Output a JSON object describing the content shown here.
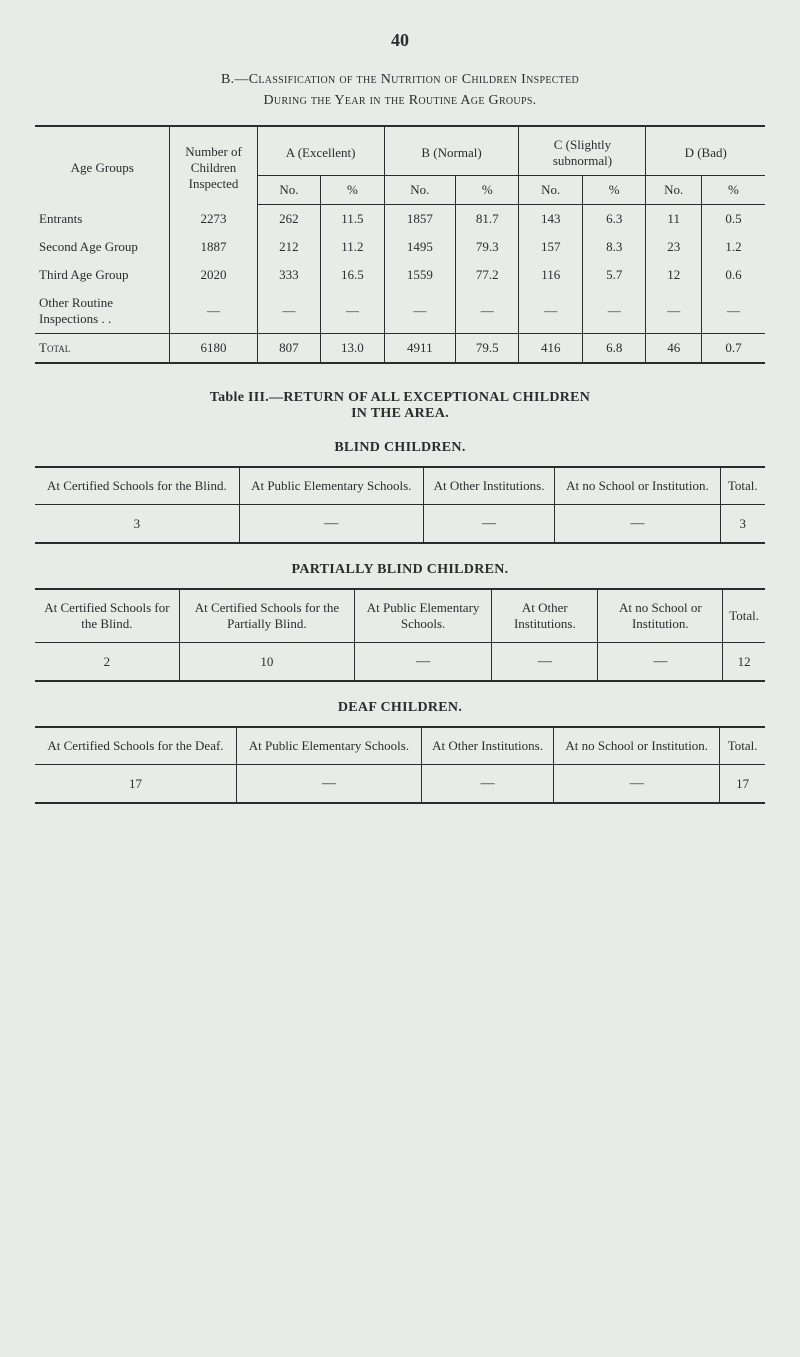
{
  "page_number": "40",
  "section_b_title_line1": "B.—Classification of the Nutrition of Children Inspected",
  "section_b_title_line2": "During the Year in the Routine Age Groups.",
  "nutrition_table": {
    "col_age": "Age Groups",
    "col_num": "Number of Children Inspected",
    "col_a": "A (Excellent)",
    "col_b": "B (Normal)",
    "col_c": "C (Slightly subnormal)",
    "col_d": "D (Bad)",
    "sub_no": "No.",
    "sub_pct": "%",
    "rows": [
      {
        "label": "Entrants",
        "num": "2273",
        "a_no": "262",
        "a_pct": "11.5",
        "b_no": "1857",
        "b_pct": "81.7",
        "c_no": "143",
        "c_pct": "6.3",
        "d_no": "11",
        "d_pct": "0.5"
      },
      {
        "label": "Second Age Group",
        "num": "1887",
        "a_no": "212",
        "a_pct": "11.2",
        "b_no": "1495",
        "b_pct": "79.3",
        "c_no": "157",
        "c_pct": "8.3",
        "d_no": "23",
        "d_pct": "1.2"
      },
      {
        "label": "Third Age Group",
        "num": "2020",
        "a_no": "333",
        "a_pct": "16.5",
        "b_no": "1559",
        "b_pct": "77.2",
        "c_no": "116",
        "c_pct": "5.7",
        "d_no": "12",
        "d_pct": "0.6"
      },
      {
        "label": "Other Routine Inspections . .",
        "num": "—",
        "a_no": "—",
        "a_pct": "—",
        "b_no": "—",
        "b_pct": "—",
        "c_no": "—",
        "c_pct": "—",
        "d_no": "—",
        "d_pct": "—"
      }
    ],
    "total_label": "Total",
    "total": {
      "num": "6180",
      "a_no": "807",
      "a_pct": "13.0",
      "b_no": "4911",
      "b_pct": "79.5",
      "c_no": "416",
      "c_pct": "6.8",
      "d_no": "46",
      "d_pct": "0.7"
    }
  },
  "table3_title_line1": "Table III.—RETURN OF ALL EXCEPTIONAL CHILDREN",
  "table3_title_line2": "IN THE AREA.",
  "blind": {
    "heading": "BLIND CHILDREN.",
    "cols": [
      "At Certified Schools for the Blind.",
      "At Public Elementary Schools.",
      "At Other Institutions.",
      "At no School or Institution.",
      "Total."
    ],
    "row": [
      "3",
      "—",
      "—",
      "—",
      "3"
    ]
  },
  "partially_blind": {
    "heading": "PARTIALLY BLIND CHILDREN.",
    "cols": [
      "At Certified Schools for the Blind.",
      "At Certified Schools for the Partially Blind.",
      "At Public Elementary Schools.",
      "At Other Institutions.",
      "At no School or Institution.",
      "Total."
    ],
    "row": [
      "2",
      "10",
      "—",
      "—",
      "—",
      "12"
    ]
  },
  "deaf": {
    "heading": "DEAF CHILDREN.",
    "cols": [
      "At Certified Schools for the Deaf.",
      "At Public Elementary Schools.",
      "At Other Institutions.",
      "At no School or Institution.",
      "Total."
    ],
    "row": [
      "17",
      "—",
      "—",
      "—",
      "17"
    ]
  }
}
